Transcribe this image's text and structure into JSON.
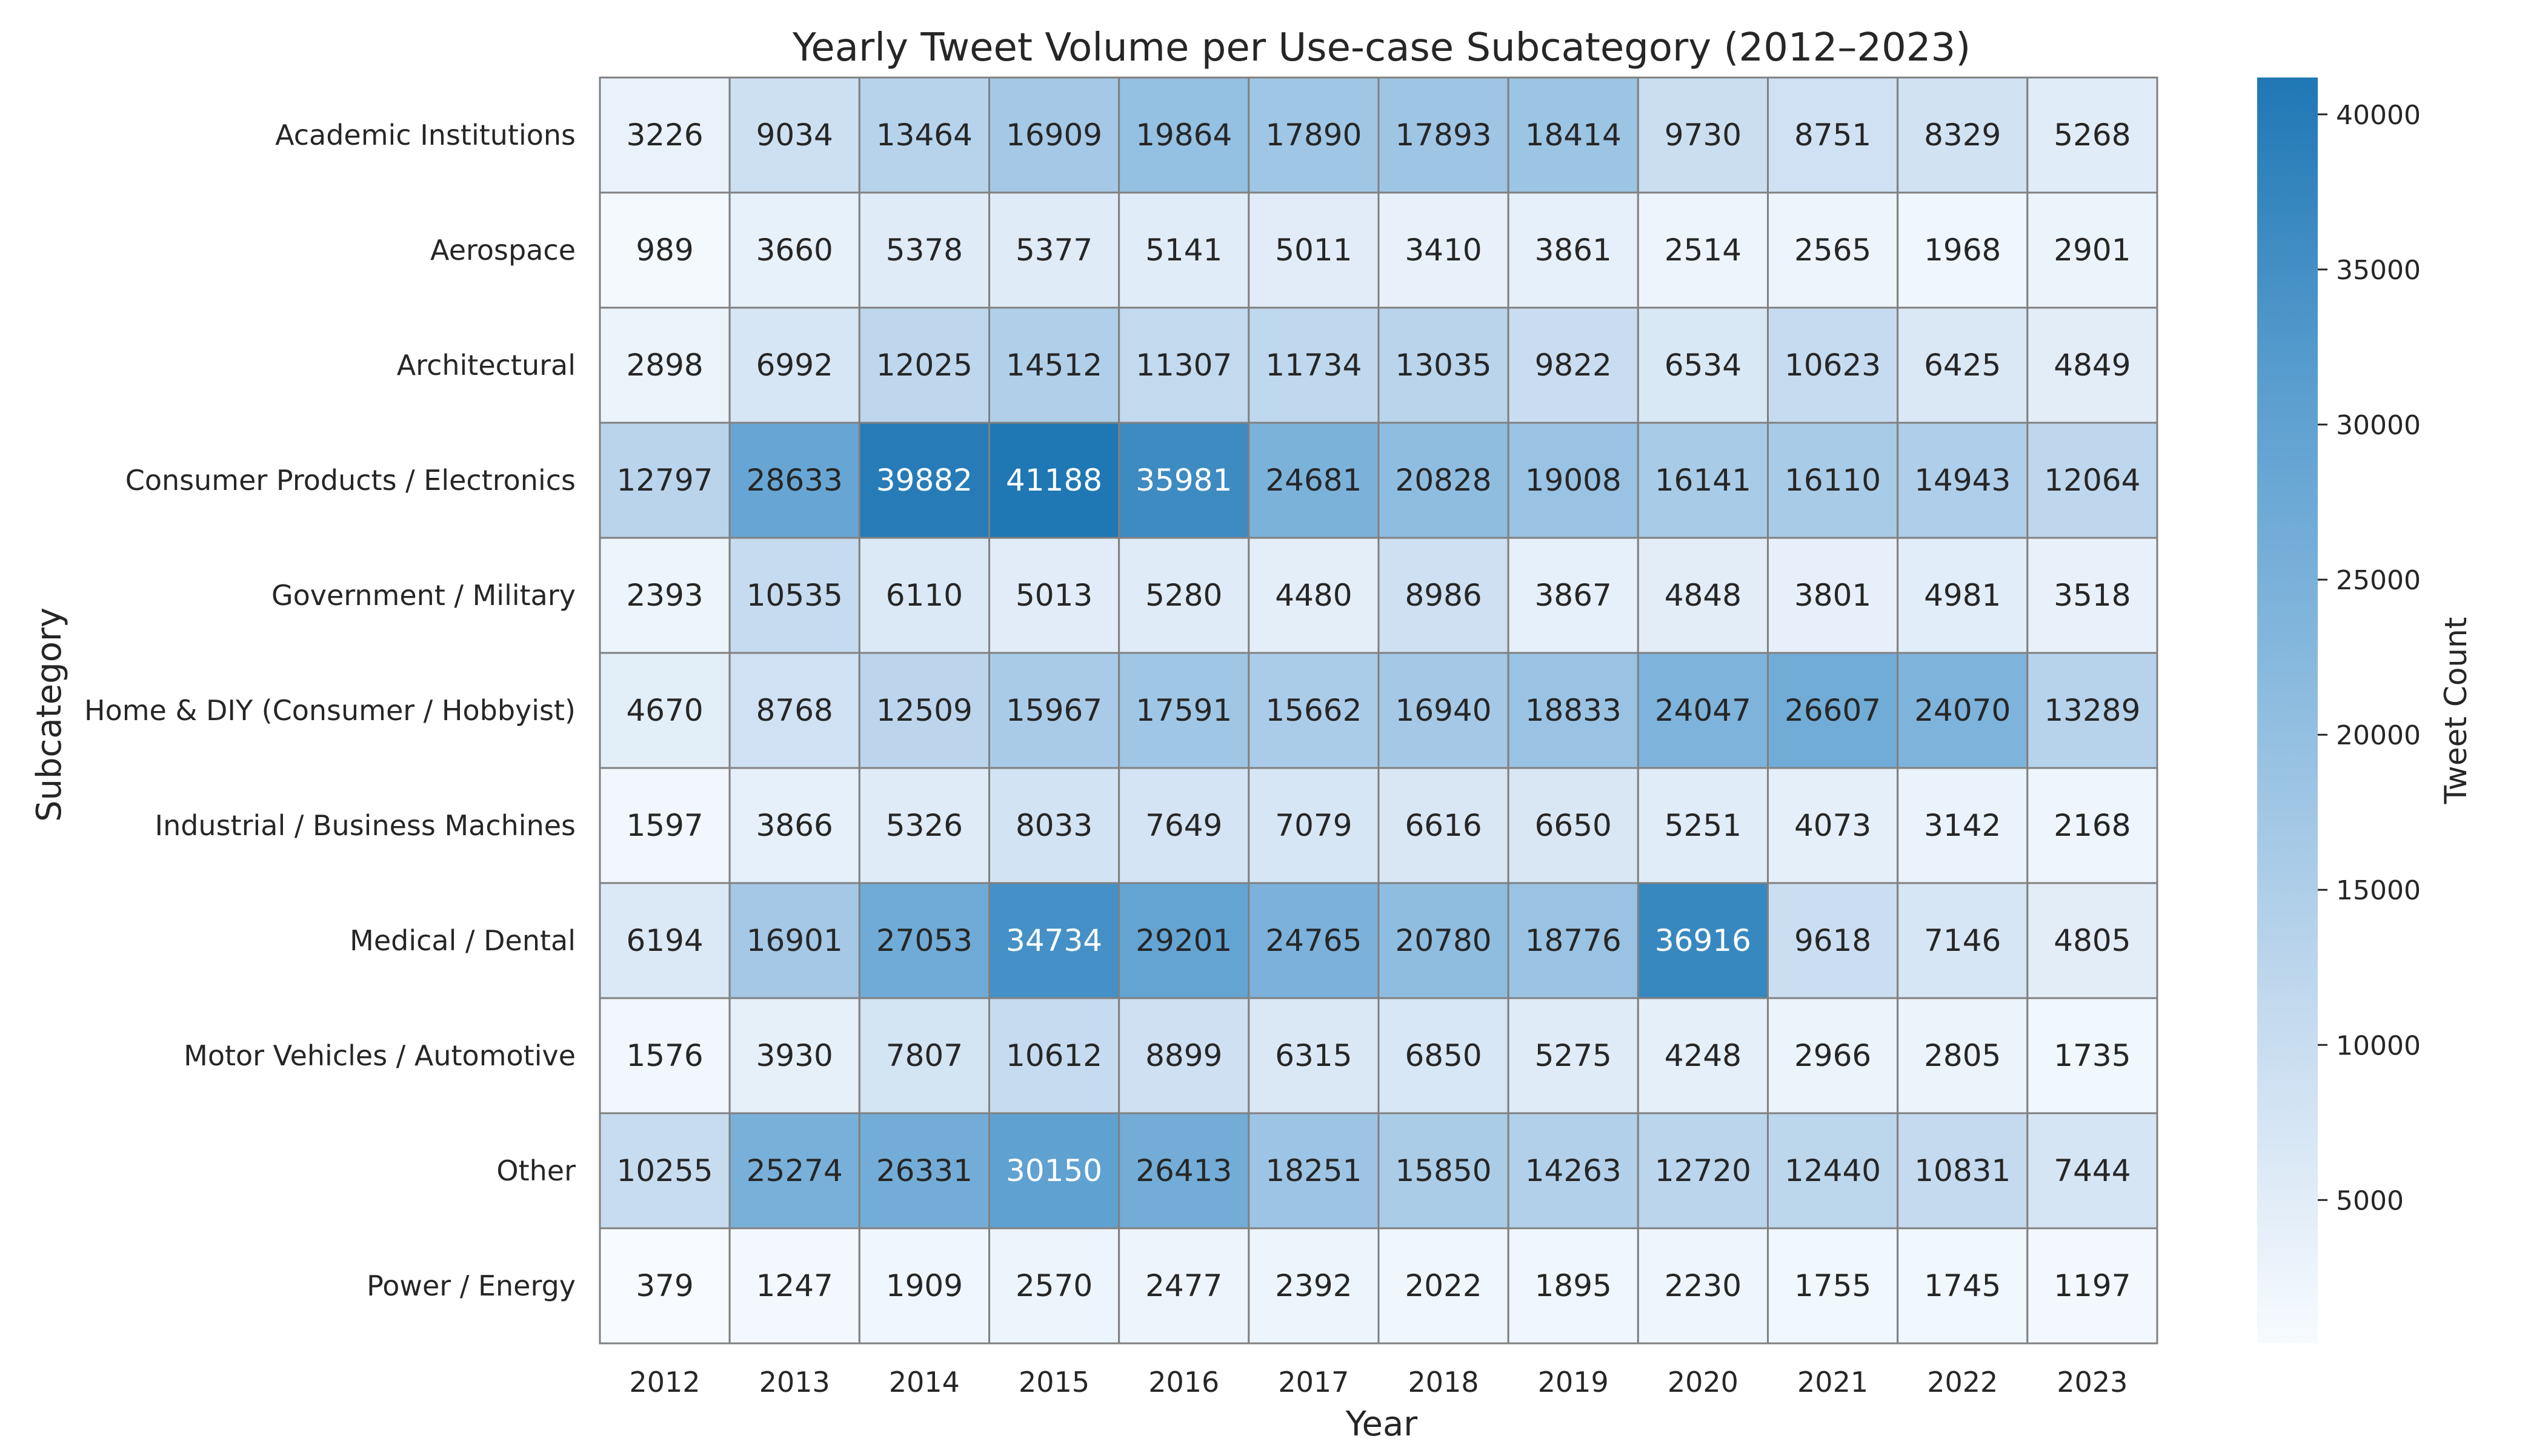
{
  "chart_data": {
    "type": "heatmap",
    "title": "Yearly Tweet Volume per Use-case Subcategory (2012–2023)",
    "xlabel": "Year",
    "ylabel": "Subcategory",
    "x": [
      "2012",
      "2013",
      "2014",
      "2015",
      "2016",
      "2017",
      "2018",
      "2019",
      "2020",
      "2021",
      "2022",
      "2023"
    ],
    "y": [
      "Academic Institutions",
      "Aerospace",
      "Architectural",
      "Consumer Products / Electronics",
      "Government / Military",
      "Home & DIY (Consumer / Hobbyist)",
      "Industrial / Business Machines",
      "Medical / Dental",
      "Motor Vehicles / Automotive",
      "Other",
      "Power / Energy"
    ],
    "values": [
      [
        3226,
        9034,
        13464,
        16909,
        19864,
        17890,
        17893,
        18414,
        9730,
        8751,
        8329,
        5268
      ],
      [
        989,
        3660,
        5378,
        5377,
        5141,
        5011,
        3410,
        3861,
        2514,
        2565,
        1968,
        2901
      ],
      [
        2898,
        6992,
        12025,
        14512,
        11307,
        11734,
        13035,
        9822,
        6534,
        10623,
        6425,
        4849
      ],
      [
        12797,
        28633,
        39882,
        41188,
        35981,
        24681,
        20828,
        19008,
        16141,
        16110,
        14943,
        12064
      ],
      [
        2393,
        10535,
        6110,
        5013,
        5280,
        4480,
        8986,
        3867,
        4848,
        3801,
        4981,
        3518
      ],
      [
        4670,
        8768,
        12509,
        15967,
        17591,
        15662,
        16940,
        18833,
        24047,
        26607,
        24070,
        13289
      ],
      [
        1597,
        3866,
        5326,
        8033,
        7649,
        7079,
        6616,
        6650,
        5251,
        4073,
        3142,
        2168
      ],
      [
        6194,
        16901,
        27053,
        34734,
        29201,
        24765,
        20780,
        18776,
        36916,
        9618,
        7146,
        4805
      ],
      [
        1576,
        3930,
        7807,
        10612,
        8899,
        6315,
        6850,
        5275,
        4248,
        2966,
        2805,
        1735
      ],
      [
        10255,
        25274,
        26331,
        30150,
        26413,
        18251,
        15850,
        14263,
        12720,
        12440,
        10831,
        7444
      ],
      [
        379,
        1247,
        1909,
        2570,
        2477,
        2392,
        2022,
        1895,
        2230,
        1755,
        1745,
        1197
      ]
    ],
    "colorbar": {
      "label": "Tweet Count",
      "range": [
        379,
        41188
      ],
      "ticks": [
        5000,
        10000,
        15000,
        20000,
        25000,
        30000,
        35000,
        40000
      ],
      "colors": [
        "#f7fbff",
        "#c6dbef",
        "#8fbde0",
        "#5b9fd0",
        "#1f77b4"
      ]
    },
    "grid": true,
    "legend": "colorbar-right"
  }
}
